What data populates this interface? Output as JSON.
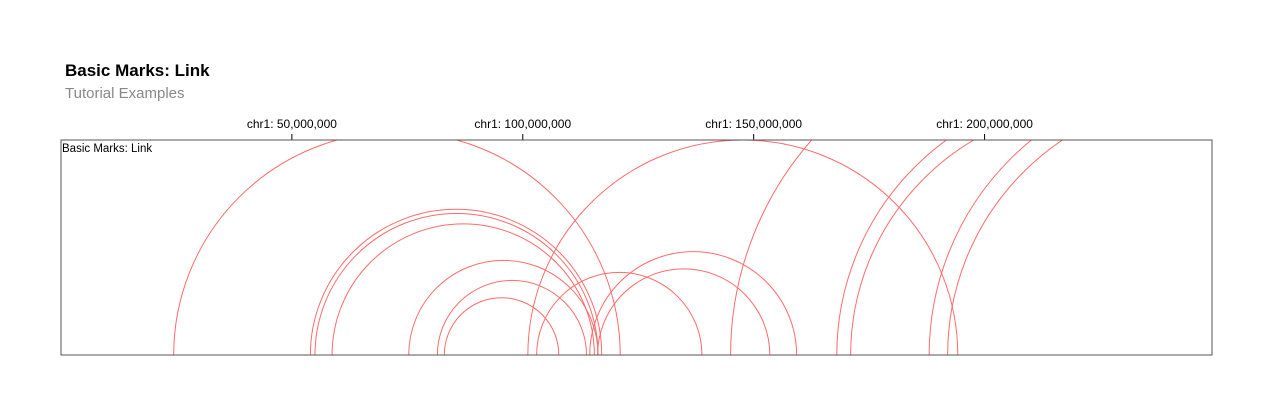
{
  "header": {
    "title": "Basic Marks: Link",
    "subtitle": "Tutorial Examples"
  },
  "chart_data": {
    "type": "arc",
    "track_title": "Basic Marks: Link",
    "chromosome": "chr1",
    "xlim": [
      1,
      249250621
    ],
    "x_ticks": [
      {
        "value": 50000000,
        "label": "chr1: 50,000,000"
      },
      {
        "value": 100000000,
        "label": "chr1: 100,000,000"
      },
      {
        "value": 150000000,
        "label": "chr1: 150,000,000"
      },
      {
        "value": 200000000,
        "label": "chr1: 200,000,000"
      }
    ],
    "link_color": "#ff6b6b",
    "frame_color": "#555555",
    "links": [
      {
        "start": 24400000,
        "end": 121100000
      },
      {
        "start": 54000000,
        "end": 117100000
      },
      {
        "start": 55000000,
        "end": 116300000
      },
      {
        "start": 58700000,
        "end": 115500000
      },
      {
        "start": 75300000,
        "end": 116300000
      },
      {
        "start": 81500000,
        "end": 113800000
      },
      {
        "start": 83000000,
        "end": 107800000
      },
      {
        "start": 101100000,
        "end": 194200000
      },
      {
        "start": 103000000,
        "end": 138800000
      },
      {
        "start": 114500000,
        "end": 159300000
      },
      {
        "start": 116200000,
        "end": 153500000
      },
      {
        "start": 145000000,
        "end": 286000000
      },
      {
        "start": 168000000,
        "end": 283000000
      },
      {
        "start": 171000000,
        "end": 279000000
      },
      {
        "start": 188000000,
        "end": 308000000
      },
      {
        "start": 192000000,
        "end": 304000000
      }
    ]
  }
}
